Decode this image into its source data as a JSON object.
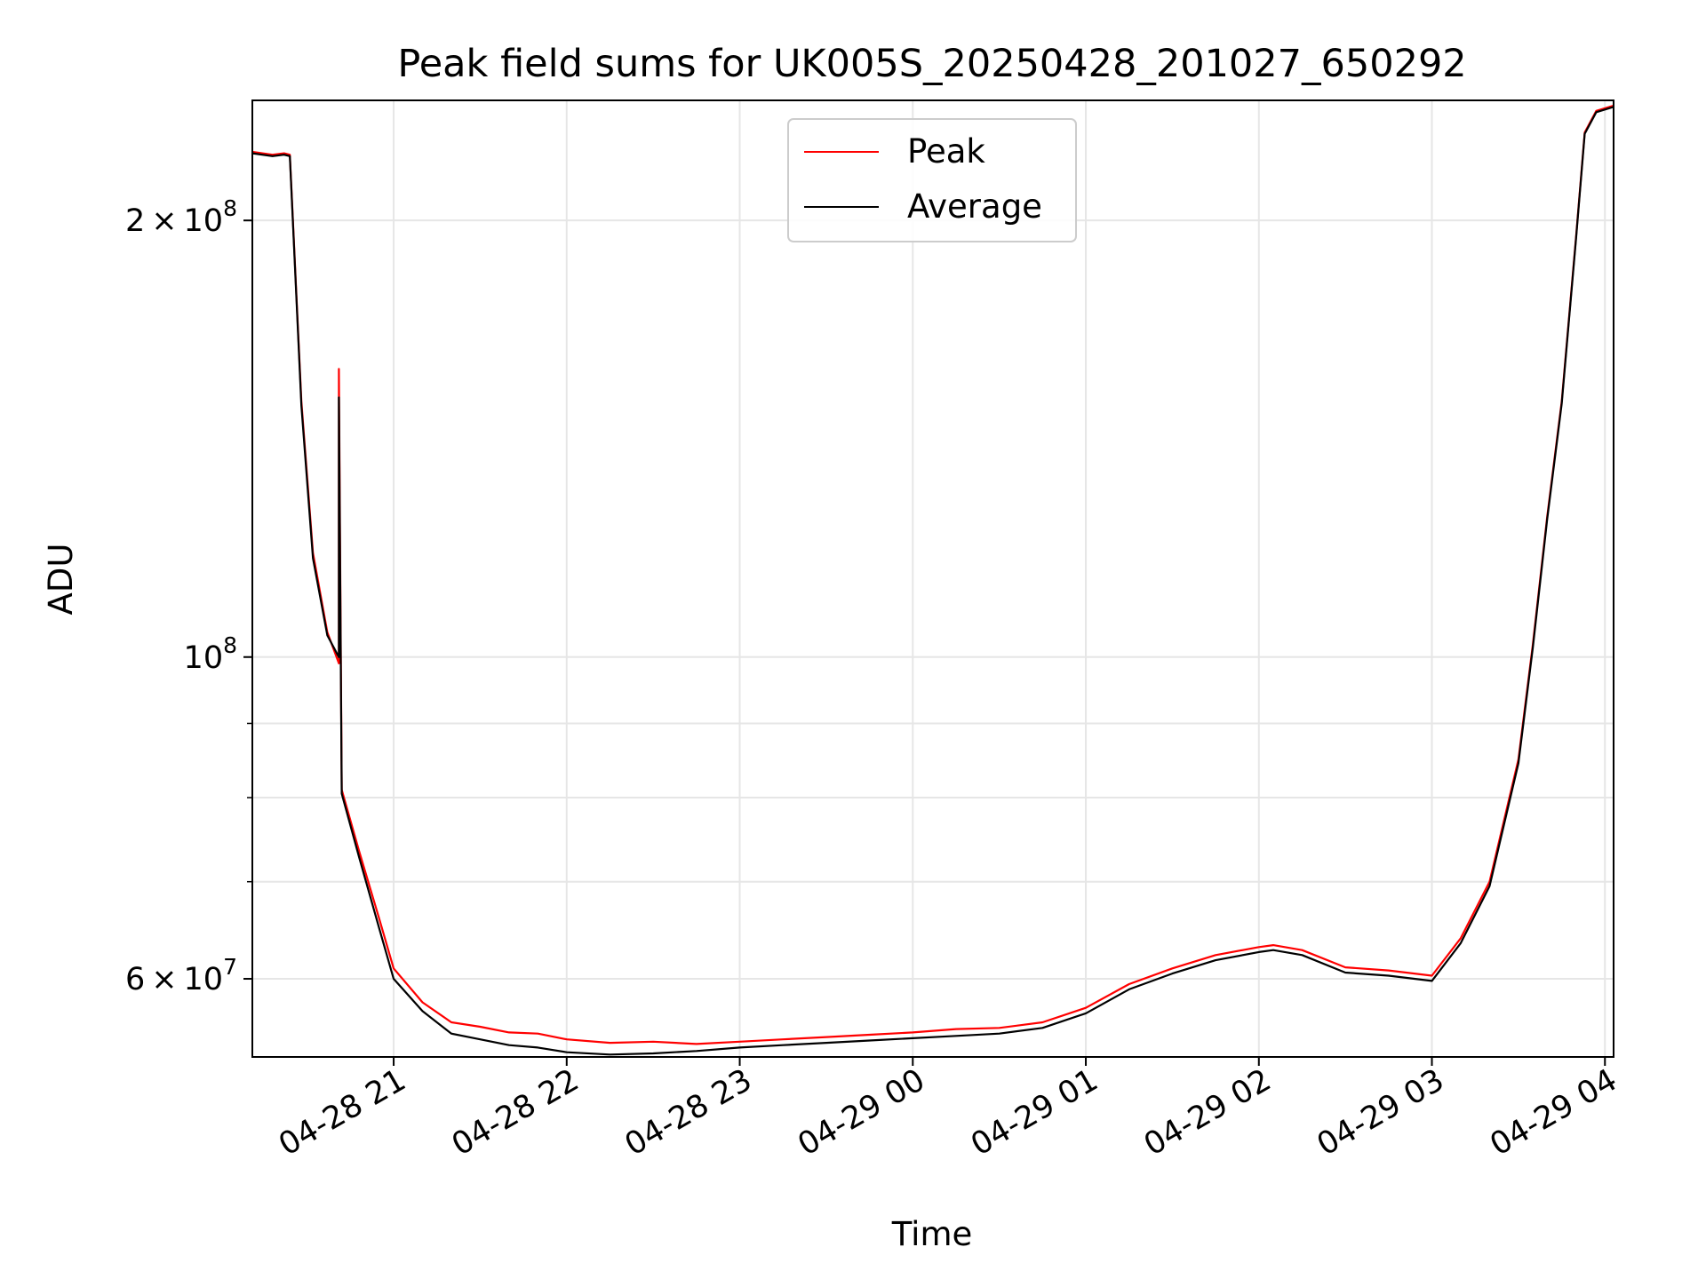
{
  "chart_data": {
    "type": "line",
    "title": "Peak field sums for UK005S_20250428_201027_650292",
    "xlabel": "Time",
    "ylabel": "ADU",
    "y_scale": "log",
    "ylim": [
      53000000,
      242000000
    ],
    "xlim": [
      "2025-04-28T20:11",
      "2025-04-29T04:03"
    ],
    "grid": true,
    "legend_position": "upper center",
    "x_ticks": [
      {
        "t": "2025-04-28T21:00",
        "label": "04-28 21"
      },
      {
        "t": "2025-04-28T22:00",
        "label": "04-28 22"
      },
      {
        "t": "2025-04-28T23:00",
        "label": "04-28 23"
      },
      {
        "t": "2025-04-29T00:00",
        "label": "04-29 00"
      },
      {
        "t": "2025-04-29T01:00",
        "label": "04-29 01"
      },
      {
        "t": "2025-04-29T02:00",
        "label": "04-29 02"
      },
      {
        "t": "2025-04-29T03:00",
        "label": "04-29 03"
      },
      {
        "t": "2025-04-29T04:00",
        "label": "04-29 04"
      }
    ],
    "y_ticks": [
      {
        "value": 200000000,
        "mantissa": "2",
        "times": "×",
        "base": "10",
        "exponent": "8"
      },
      {
        "value": 100000000,
        "mantissa": "",
        "times": "",
        "base": "10",
        "exponent": "8"
      },
      {
        "value": 60000000,
        "mantissa": "6",
        "times": "×",
        "base": "10",
        "exponent": "7"
      }
    ],
    "y_minor_ticks": [
      70000000,
      80000000,
      90000000
    ],
    "series": [
      {
        "name": "Peak",
        "color": "#ff0000",
        "x": [
          "2025-04-28T20:11",
          "2025-04-28T20:18",
          "2025-04-28T20:22",
          "2025-04-28T20:24",
          "2025-04-28T20:28",
          "2025-04-28T20:32",
          "2025-04-28T20:37",
          "2025-04-28T20:41",
          "2025-04-28T20:41",
          "2025-04-28T20:42",
          "2025-04-28T20:48",
          "2025-04-28T20:55",
          "2025-04-28T21:00",
          "2025-04-28T21:10",
          "2025-04-28T21:20",
          "2025-04-28T21:30",
          "2025-04-28T21:40",
          "2025-04-28T21:50",
          "2025-04-28T22:00",
          "2025-04-28T22:15",
          "2025-04-28T22:30",
          "2025-04-28T22:45",
          "2025-04-28T23:00",
          "2025-04-28T23:15",
          "2025-04-28T23:30",
          "2025-04-28T23:45",
          "2025-04-29T00:00",
          "2025-04-29T00:15",
          "2025-04-29T00:30",
          "2025-04-29T00:45",
          "2025-04-29T01:00",
          "2025-04-29T01:15",
          "2025-04-29T01:30",
          "2025-04-29T01:45",
          "2025-04-29T02:00",
          "2025-04-29T02:05",
          "2025-04-29T02:15",
          "2025-04-29T02:30",
          "2025-04-29T02:45",
          "2025-04-29T03:00",
          "2025-04-29T03:10",
          "2025-04-29T03:20",
          "2025-04-29T03:30",
          "2025-04-29T03:35",
          "2025-04-29T03:40",
          "2025-04-29T03:45",
          "2025-04-29T03:50",
          "2025-04-29T03:53",
          "2025-04-29T03:57",
          "2025-04-29T04:03"
        ],
        "y": [
          223000000,
          222000000,
          222500000,
          222000000,
          150000000,
          118000000,
          104000000,
          99000000,
          158000000,
          81000000,
          73500000,
          66000000,
          61000000,
          57800000,
          56000000,
          55600000,
          55100000,
          55000000,
          54500000,
          54200000,
          54300000,
          54100000,
          54300000,
          54500000,
          54700000,
          54900000,
          55100000,
          55400000,
          55500000,
          56000000,
          57300000,
          59500000,
          61000000,
          62300000,
          63100000,
          63300000,
          62800000,
          61100000,
          60800000,
          60300000,
          64000000,
          70000000,
          85000000,
          102000000,
          125000000,
          150000000,
          195000000,
          230000000,
          238000000,
          240000000
        ]
      },
      {
        "name": "Average",
        "color": "#000000",
        "x": [
          "2025-04-28T20:11",
          "2025-04-28T20:18",
          "2025-04-28T20:22",
          "2025-04-28T20:24",
          "2025-04-28T20:28",
          "2025-04-28T20:32",
          "2025-04-28T20:37",
          "2025-04-28T20:41",
          "2025-04-28T20:41",
          "2025-04-28T20:42",
          "2025-04-28T20:48",
          "2025-04-28T20:55",
          "2025-04-28T21:00",
          "2025-04-28T21:10",
          "2025-04-28T21:20",
          "2025-04-28T21:30",
          "2025-04-28T21:40",
          "2025-04-28T21:50",
          "2025-04-28T22:00",
          "2025-04-28T22:15",
          "2025-04-28T22:30",
          "2025-04-28T22:45",
          "2025-04-28T23:00",
          "2025-04-28T23:15",
          "2025-04-28T23:30",
          "2025-04-28T23:45",
          "2025-04-29T00:00",
          "2025-04-29T00:15",
          "2025-04-29T00:30",
          "2025-04-29T00:45",
          "2025-04-29T01:00",
          "2025-04-29T01:15",
          "2025-04-29T01:30",
          "2025-04-29T01:45",
          "2025-04-29T02:00",
          "2025-04-29T02:05",
          "2025-04-29T02:15",
          "2025-04-29T02:30",
          "2025-04-29T02:45",
          "2025-04-29T03:00",
          "2025-04-29T03:10",
          "2025-04-29T03:20",
          "2025-04-29T03:30",
          "2025-04-29T03:35",
          "2025-04-29T03:40",
          "2025-04-29T03:45",
          "2025-04-29T03:50",
          "2025-04-29T03:53",
          "2025-04-29T03:57",
          "2025-04-29T04:03"
        ],
        "y": [
          222500000,
          221500000,
          222000000,
          221500000,
          149000000,
          117000000,
          103500000,
          100000000,
          151000000,
          80500000,
          72800000,
          65000000,
          60000000,
          57000000,
          55000000,
          54500000,
          54000000,
          53800000,
          53400000,
          53200000,
          53300000,
          53500000,
          53800000,
          54000000,
          54200000,
          54400000,
          54600000,
          54800000,
          55000000,
          55500000,
          56800000,
          59000000,
          60500000,
          61800000,
          62600000,
          62800000,
          62300000,
          60600000,
          60300000,
          59800000,
          63500000,
          69500000,
          84500000,
          101500000,
          124500000,
          149500000,
          194500000,
          229500000,
          237500000,
          239500000
        ]
      }
    ]
  }
}
